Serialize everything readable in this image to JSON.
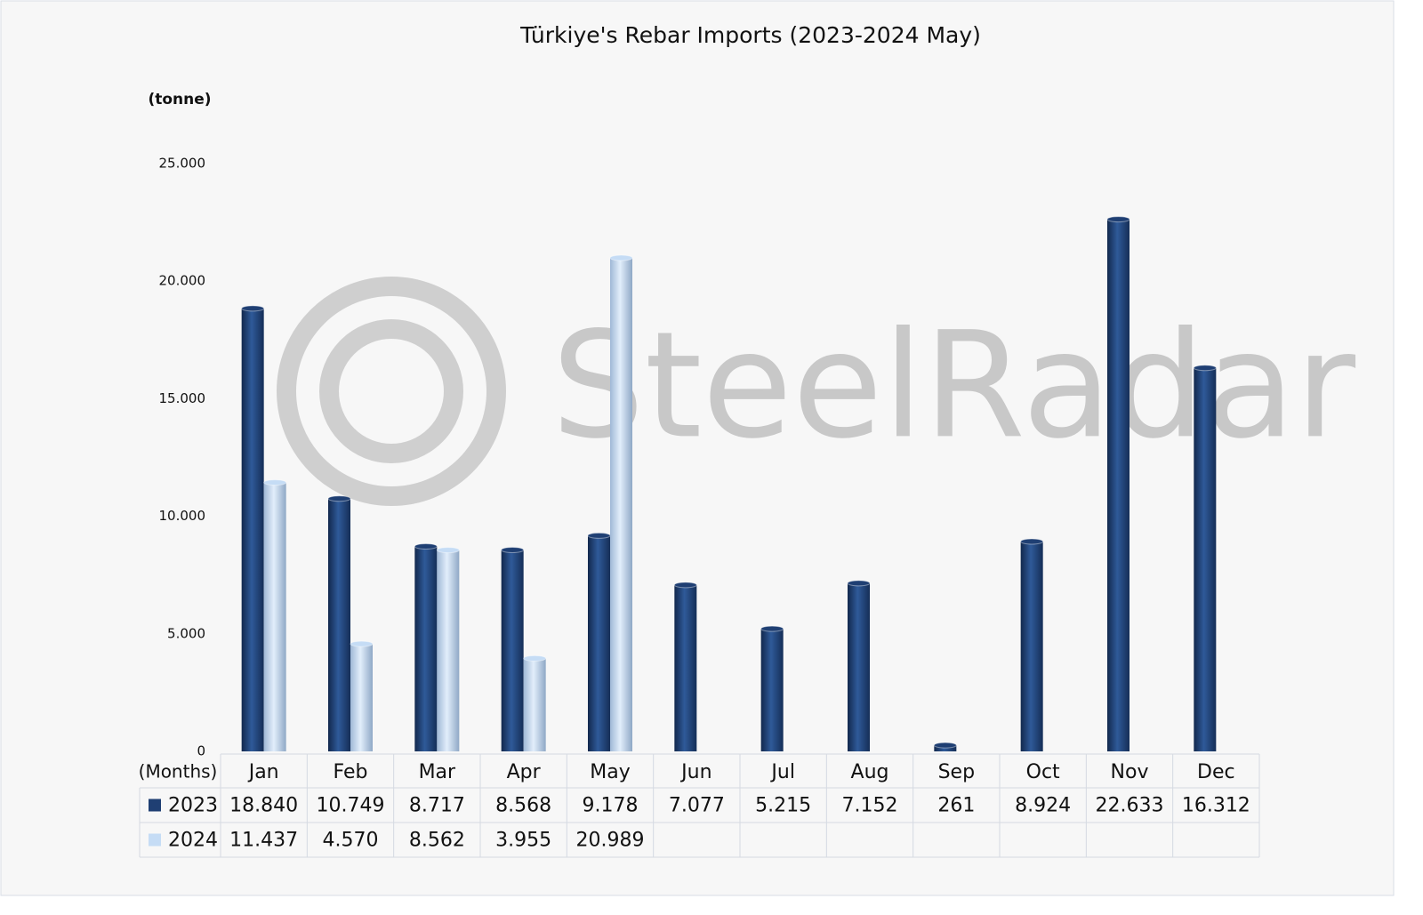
{
  "chart_data": {
    "type": "bar",
    "title": "Türkiye's Rebar Imports (2023-2024 May)",
    "y_label": "(tonne)",
    "x_label": "(Months)",
    "watermark": "SteelRadar",
    "categories": [
      "Jan",
      "Feb",
      "Mar",
      "Apr",
      "May",
      "Jun",
      "Jul",
      "Aug",
      "Sep",
      "Oct",
      "Nov",
      "Dec"
    ],
    "series": [
      {
        "name": "2023",
        "color": "#1f3f73",
        "values": [
          18840,
          10749,
          8717,
          8568,
          9178,
          7077,
          5215,
          7152,
          261,
          8924,
          22633,
          16312
        ],
        "value_labels": [
          "18.840",
          "10.749",
          "8.717",
          "8.568",
          "9.178",
          "7.077",
          "5.215",
          "7.152",
          "261",
          "8.924",
          "22.633",
          "16.312"
        ]
      },
      {
        "name": "2024",
        "color": "#c5dcf5",
        "values": [
          11437,
          4570,
          8562,
          3955,
          20989,
          null,
          null,
          null,
          null,
          null,
          null,
          null
        ],
        "value_labels": [
          "11.437",
          "4.570",
          "8.562",
          "3.955",
          "20.989",
          null,
          null,
          null,
          null,
          null,
          null,
          null
        ]
      }
    ],
    "ylim": [
      0,
      25000
    ],
    "yticks": [
      0,
      {
        "value": 5000,
        "label": "5.000"
      },
      {
        "value": 10000,
        "label": "10.000"
      },
      {
        "value": 15000,
        "label": "15.000"
      },
      {
        "value": 20000,
        "label": "20.000"
      },
      {
        "value": 25000,
        "label": "25.000"
      }
    ],
    "grid": false
  }
}
